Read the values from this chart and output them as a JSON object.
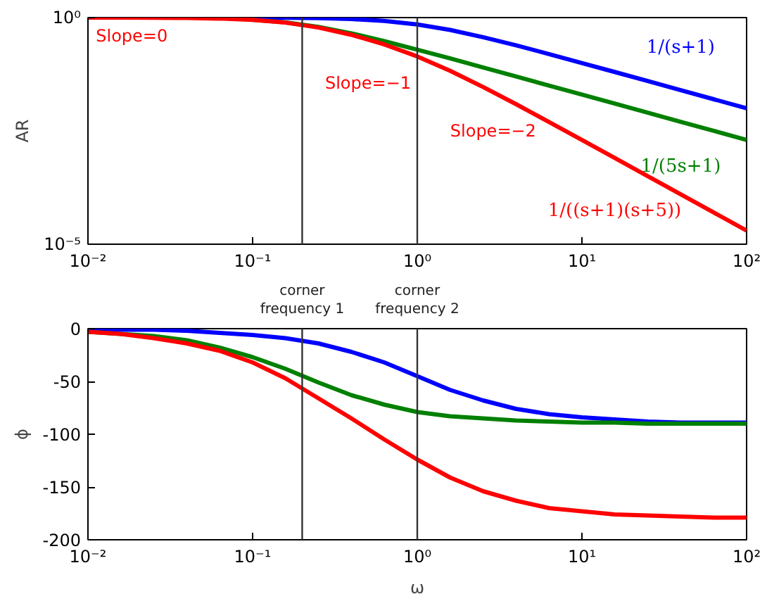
{
  "chart_data": [
    {
      "type": "line",
      "log": "xy",
      "ylabel": "AR",
      "grid": false,
      "legend": false,
      "x": [
        0.01,
        0.0158,
        0.0251,
        0.0398,
        0.0631,
        0.1,
        0.158,
        0.251,
        0.398,
        0.631,
        1,
        1.58,
        2.51,
        3.98,
        6.31,
        10,
        15.8,
        25.1,
        39.8,
        63.1,
        100
      ],
      "series": [
        {
          "name": "1/(s+1)",
          "color": "#0000ff",
          "values": [
            null,
            null,
            null,
            null,
            null,
            0.995,
            0.988,
            0.97,
            0.929,
            0.846,
            0.707,
            0.535,
            0.37,
            0.244,
            0.157,
            0.0995,
            0.0632,
            0.0398,
            0.0251,
            0.0158,
            0.01
          ]
        },
        {
          "name": "1/(5s+1)",
          "color": "#008000",
          "values": [
            null,
            null,
            null,
            null,
            null,
            0.894,
            0.785,
            0.623,
            0.449,
            0.302,
            0.196,
            0.126,
            0.0794,
            0.0502,
            0.0317,
            0.02,
            0.0127,
            0.00797,
            0.00503,
            0.00317,
            0.002
          ]
        },
        {
          "name": "1/((s+1)(s+5))",
          "color": "#ff0000",
          "values": [
            0.999,
            0.997,
            0.992,
            0.98,
            0.952,
            0.889,
            0.776,
            0.604,
            0.417,
            0.255,
            0.139,
            0.0672,
            0.0294,
            0.0123,
            0.00498,
            0.00199,
            0.0008,
            0.000317,
            0.000126,
            5.01e-05,
            2e-05
          ]
        }
      ],
      "xlim": [
        0.01,
        100
      ],
      "ylim": [
        1e-05,
        1
      ],
      "xticks": [
        {
          "value": 0.01,
          "label": "10⁻²"
        },
        {
          "value": 0.1,
          "label": "10⁻¹"
        },
        {
          "value": 1,
          "label": "10⁰"
        },
        {
          "value": 10,
          "label": "10¹"
        },
        {
          "value": 100,
          "label": "10²"
        }
      ],
      "yticks": [
        {
          "value": 1e-05,
          "label": "10⁻⁵"
        },
        {
          "value": 1,
          "label": "10⁰"
        }
      ],
      "ref_lines": [
        {
          "axis": "x",
          "value": 0.2
        },
        {
          "axis": "x",
          "value": 1
        }
      ],
      "annotations": [
        "Slope=0",
        "Slope=−1",
        "Slope=−2"
      ]
    },
    {
      "type": "line",
      "log": "x",
      "ylabel": "ϕ",
      "xlabel": "ω",
      "grid": false,
      "x": [
        0.01,
        0.0158,
        0.0251,
        0.0398,
        0.0631,
        0.1,
        0.158,
        0.251,
        0.398,
        0.631,
        1,
        1.58,
        2.51,
        3.98,
        6.31,
        10,
        15.8,
        25.1,
        39.8,
        63.1,
        100
      ],
      "series": [
        {
          "color": "#0000ff",
          "values": [
            -1,
            -1,
            -1,
            -2,
            -4,
            -6,
            -9,
            -14,
            -22,
            -32,
            -45,
            -58,
            -68,
            -76,
            -81,
            -84,
            -86,
            -88,
            -89,
            -89,
            -89
          ]
        },
        {
          "color": "#008000",
          "values": [
            -3,
            -5,
            -7,
            -11,
            -18,
            -27,
            -38,
            -51,
            -63,
            -72,
            -79,
            -83,
            -85,
            -87,
            -88,
            -89,
            -89,
            -90,
            -90,
            -90,
            -90
          ]
        },
        {
          "color": "#ff0000",
          "values": [
            -3,
            -5,
            -9,
            -14,
            -21,
            -32,
            -47,
            -66,
            -85,
            -105,
            -124,
            -141,
            -154,
            -163,
            -170,
            -173,
            -176,
            -177,
            -178,
            -179,
            -179
          ]
        }
      ],
      "xlim": [
        0.01,
        100
      ],
      "ylim": [
        -200,
        0
      ],
      "xticks": [
        {
          "value": 0.01,
          "label": "10⁻²"
        },
        {
          "value": 0.1,
          "label": "10⁻¹"
        },
        {
          "value": 1,
          "label": "10⁰"
        },
        {
          "value": 10,
          "label": "10¹"
        },
        {
          "value": 100,
          "label": "10²"
        }
      ],
      "yticks": [
        0,
        -50,
        -100,
        -150,
        -200
      ],
      "ref_lines": [
        {
          "axis": "x",
          "value": 0.2,
          "label": "corner frequency 1"
        },
        {
          "axis": "x",
          "value": 1,
          "label": "corner frequency 2"
        }
      ]
    }
  ]
}
